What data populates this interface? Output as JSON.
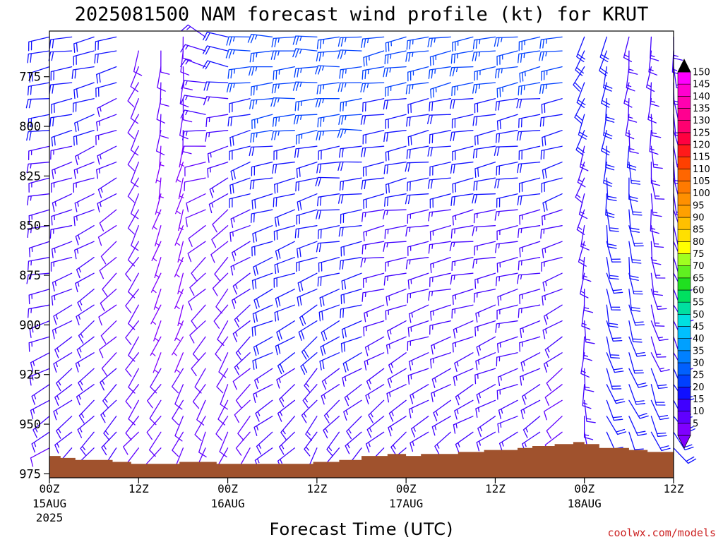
{
  "chart_data": {
    "type": "wind-barb-time-height",
    "title": "2025081500 NAM forecast wind profile (kt) for KRUT",
    "xlabel": "Forecast Time (UTC)",
    "credit": "coolwx.com/models",
    "x_ticks": [
      {
        "hour": 0,
        "label": "00Z",
        "sub": "15AUG",
        "sub2": "2025"
      },
      {
        "hour": 12,
        "label": "12Z",
        "sub": "",
        "sub2": ""
      },
      {
        "hour": 24,
        "label": "00Z",
        "sub": "16AUG",
        "sub2": ""
      },
      {
        "hour": 36,
        "label": "12Z",
        "sub": "",
        "sub2": ""
      },
      {
        "hour": 48,
        "label": "00Z",
        "sub": "17AUG",
        "sub2": ""
      },
      {
        "hour": 60,
        "label": "12Z",
        "sub": "",
        "sub2": ""
      },
      {
        "hour": 72,
        "label": "00Z",
        "sub": "18AUG",
        "sub2": ""
      },
      {
        "hour": 84,
        "label": "12Z",
        "sub": "",
        "sub2": ""
      }
    ],
    "xlim": [
      0,
      84
    ],
    "y_ticks": [
      {
        "value": 775,
        "label": "775"
      },
      {
        "value": 800,
        "label": "800"
      },
      {
        "value": 825,
        "label": "825"
      },
      {
        "value": 850,
        "label": "850"
      },
      {
        "value": 875,
        "label": "875"
      },
      {
        "value": 900,
        "label": "900"
      },
      {
        "value": 925,
        "label": "925"
      },
      {
        "value": 950,
        "label": "950"
      },
      {
        "value": 975,
        "label": "975"
      }
    ],
    "ylim": [
      752,
      977
    ],
    "y_unit": "hPa",
    "colorbar": {
      "labels": [
        "5",
        "10",
        "15",
        "20",
        "25",
        "30",
        "35",
        "40",
        "45",
        "50",
        "55",
        "60",
        "65",
        "70",
        "75",
        "80",
        "85",
        "90",
        "95",
        "100",
        "105",
        "110",
        "115",
        "120",
        "125",
        "130",
        "135",
        "140",
        "145",
        "150"
      ],
      "colors": [
        "#8000ff",
        "#6000ff",
        "#4000ff",
        "#1010ff",
        "#0040ff",
        "#0060ff",
        "#0080ff",
        "#00a0ff",
        "#00c0ff",
        "#00e0e0",
        "#00e0a0",
        "#00e060",
        "#20e020",
        "#60f020",
        "#a0ff20",
        "#ffff00",
        "#ffe000",
        "#ffc000",
        "#ffa000",
        "#ff9000",
        "#ff7a00",
        "#ff6600",
        "#ff4000",
        "#ff1a1a",
        "#ff0040",
        "#ff0070",
        "#ff0090",
        "#ff00b0",
        "#ff00d0",
        "#ff00ff"
      ]
    },
    "terrain": {
      "color": "#a0522d",
      "surface_pressure": [
        [
          0,
          966
        ],
        [
          1.5,
          967
        ],
        [
          3.5,
          968
        ],
        [
          8.5,
          969
        ],
        [
          11,
          970
        ],
        [
          15,
          970
        ],
        [
          17.5,
          969
        ],
        [
          22.5,
          970
        ],
        [
          28,
          970
        ],
        [
          35.5,
          969
        ],
        [
          39,
          968
        ],
        [
          42,
          966
        ],
        [
          45.5,
          965
        ],
        [
          48,
          966
        ],
        [
          50,
          965
        ],
        [
          55,
          964
        ],
        [
          58.5,
          963
        ],
        [
          63,
          962
        ],
        [
          65,
          961
        ],
        [
          68,
          960
        ],
        [
          70.5,
          959
        ],
        [
          72,
          960
        ],
        [
          74,
          962
        ],
        [
          78,
          963
        ],
        [
          80.5,
          964
        ],
        [
          84,
          966
        ]
      ]
    },
    "wind": {
      "levels": [
        755,
        762,
        770,
        778,
        786,
        794,
        802,
        810,
        818,
        826,
        834,
        842,
        850,
        858,
        866,
        874,
        882,
        890,
        898,
        906,
        914,
        922,
        930,
        938,
        946,
        954,
        962,
        970
      ],
      "columns": [
        {
          "hour": 0,
          "top": 755,
          "bottom": 962,
          "low": {
            "dir": 230,
            "spd": 12
          },
          "mid": {
            "dir": 260,
            "spd": 15
          },
          "high": {
            "dir": 260,
            "spd": 20
          }
        },
        {
          "hour": 3,
          "top": 755,
          "bottom": 964,
          "low": {
            "dir": 220,
            "spd": 15
          },
          "mid": {
            "dir": 250,
            "spd": 15
          },
          "high": {
            "dir": 260,
            "spd": 20
          }
        },
        {
          "hour": 6,
          "top": 755,
          "bottom": 965,
          "low": {
            "dir": 220,
            "spd": 15
          },
          "mid": {
            "dir": 240,
            "spd": 15
          },
          "high": {
            "dir": 260,
            "spd": 20
          }
        },
        {
          "hour": 9,
          "top": 755,
          "bottom": 965,
          "low": {
            "dir": 220,
            "spd": 15
          },
          "mid": {
            "dir": 230,
            "spd": 10
          },
          "high": {
            "dir": 260,
            "spd": 20
          }
        },
        {
          "hour": 12,
          "top": 760,
          "bottom": 966,
          "low": {
            "dir": 220,
            "spd": 10
          },
          "mid": {
            "dir": 210,
            "spd": 10
          },
          "high": {
            "dir": 200,
            "spd": 10
          }
        },
        {
          "hour": 15,
          "top": 760,
          "bottom": 966,
          "low": {
            "dir": 220,
            "spd": 10
          },
          "mid": {
            "dir": 200,
            "spd": 5
          },
          "high": {
            "dir": 180,
            "spd": 10
          }
        },
        {
          "hour": 18,
          "top": 755,
          "bottom": 966,
          "low": {
            "dir": 210,
            "spd": 10
          },
          "mid": {
            "dir": 200,
            "spd": 5
          },
          "high": {
            "dir": 180,
            "spd": 10
          }
        },
        {
          "hour": 21,
          "top": 755,
          "bottom": 966,
          "low": {
            "dir": 200,
            "spd": 10
          },
          "mid": {
            "dir": 230,
            "spd": 10
          },
          "high": {
            "dir": 300,
            "spd": 15
          }
        },
        {
          "hour": 24,
          "top": 755,
          "bottom": 966,
          "low": {
            "dir": 200,
            "spd": 10
          },
          "mid": {
            "dir": 220,
            "spd": 10
          },
          "high": {
            "dir": 290,
            "spd": 20
          }
        },
        {
          "hour": 27,
          "top": 755,
          "bottom": 968,
          "low": {
            "dir": 210,
            "spd": 10
          },
          "mid": {
            "dir": 240,
            "spd": 15
          },
          "high": {
            "dir": 270,
            "spd": 25
          }
        },
        {
          "hour": 30,
          "top": 755,
          "bottom": 968,
          "low": {
            "dir": 230,
            "spd": 15
          },
          "mid": {
            "dir": 250,
            "spd": 20
          },
          "high": {
            "dir": 270,
            "spd": 25
          }
        },
        {
          "hour": 33,
          "top": 755,
          "bottom": 968,
          "low": {
            "dir": 220,
            "spd": 15
          },
          "mid": {
            "dir": 250,
            "spd": 20
          },
          "high": {
            "dir": 270,
            "spd": 25
          }
        },
        {
          "hour": 36,
          "top": 755,
          "bottom": 966,
          "low": {
            "dir": 200,
            "spd": 15
          },
          "mid": {
            "dir": 250,
            "spd": 20
          },
          "high": {
            "dir": 270,
            "spd": 25
          }
        },
        {
          "hour": 39,
          "top": 755,
          "bottom": 964,
          "low": {
            "dir": 210,
            "spd": 15
          },
          "mid": {
            "dir": 260,
            "spd": 20
          },
          "high": {
            "dir": 270,
            "spd": 25
          }
        },
        {
          "hour": 42,
          "top": 755,
          "bottom": 963,
          "low": {
            "dir": 220,
            "spd": 15
          },
          "mid": {
            "dir": 260,
            "spd": 20
          },
          "high": {
            "dir": 270,
            "spd": 25
          }
        },
        {
          "hour": 45,
          "top": 755,
          "bottom": 962,
          "low": {
            "dir": 220,
            "spd": 15
          },
          "mid": {
            "dir": 260,
            "spd": 15
          },
          "high": {
            "dir": 260,
            "spd": 25
          }
        },
        {
          "hour": 48,
          "top": 755,
          "bottom": 962,
          "low": {
            "dir": 220,
            "spd": 15
          },
          "mid": {
            "dir": 260,
            "spd": 15
          },
          "high": {
            "dir": 260,
            "spd": 25
          }
        },
        {
          "hour": 51,
          "top": 755,
          "bottom": 961,
          "low": {
            "dir": 230,
            "spd": 15
          },
          "mid": {
            "dir": 260,
            "spd": 15
          },
          "high": {
            "dir": 260,
            "spd": 25
          }
        },
        {
          "hour": 54,
          "top": 755,
          "bottom": 960,
          "low": {
            "dir": 230,
            "spd": 15
          },
          "mid": {
            "dir": 260,
            "spd": 15
          },
          "high": {
            "dir": 260,
            "spd": 25
          }
        },
        {
          "hour": 57,
          "top": 755,
          "bottom": 960,
          "low": {
            "dir": 230,
            "spd": 15
          },
          "mid": {
            "dir": 260,
            "spd": 15
          },
          "high": {
            "dir": 260,
            "spd": 25
          }
        },
        {
          "hour": 60,
          "top": 755,
          "bottom": 959,
          "low": {
            "dir": 230,
            "spd": 15
          },
          "mid": {
            "dir": 260,
            "spd": 15
          },
          "high": {
            "dir": 260,
            "spd": 25
          }
        },
        {
          "hour": 63,
          "top": 755,
          "bottom": 958,
          "low": {
            "dir": 240,
            "spd": 15
          },
          "mid": {
            "dir": 260,
            "spd": 15
          },
          "high": {
            "dir": 260,
            "spd": 25
          }
        },
        {
          "hour": 66,
          "top": 755,
          "bottom": 957,
          "low": {
            "dir": 230,
            "spd": 15
          },
          "mid": {
            "dir": 260,
            "spd": 15
          },
          "high": {
            "dir": 260,
            "spd": 25
          }
        },
        {
          "hour": 69,
          "top": 755,
          "bottom": 956,
          "low": {
            "dir": 220,
            "spd": 10
          },
          "mid": {
            "dir": 250,
            "spd": 15
          },
          "high": {
            "dir": 260,
            "spd": 25
          }
        },
        {
          "hour": 72,
          "top": 755,
          "bottom": 957,
          "low": {
            "dir": 170,
            "spd": 15
          },
          "mid": {
            "dir": 190,
            "spd": 15
          },
          "high": {
            "dir": 210,
            "spd": 20
          }
        },
        {
          "hour": 75,
          "top": 755,
          "bottom": 958,
          "low": {
            "dir": 150,
            "spd": 20
          },
          "mid": {
            "dir": 170,
            "spd": 20
          },
          "high": {
            "dir": 200,
            "spd": 20
          }
        },
        {
          "hour": 78,
          "top": 755,
          "bottom": 960,
          "low": {
            "dir": 150,
            "spd": 20
          },
          "mid": {
            "dir": 170,
            "spd": 20
          },
          "high": {
            "dir": 190,
            "spd": 15
          }
        },
        {
          "hour": 81,
          "top": 755,
          "bottom": 961,
          "low": {
            "dir": 150,
            "spd": 20
          },
          "mid": {
            "dir": 170,
            "spd": 15
          },
          "high": {
            "dir": 190,
            "spd": 15
          }
        },
        {
          "hour": 84,
          "top": 755,
          "bottom": 963,
          "low": {
            "dir": 140,
            "spd": 20
          },
          "mid": {
            "dir": 160,
            "spd": 15
          },
          "high": {
            "dir": 180,
            "spd": 15
          }
        }
      ]
    }
  }
}
